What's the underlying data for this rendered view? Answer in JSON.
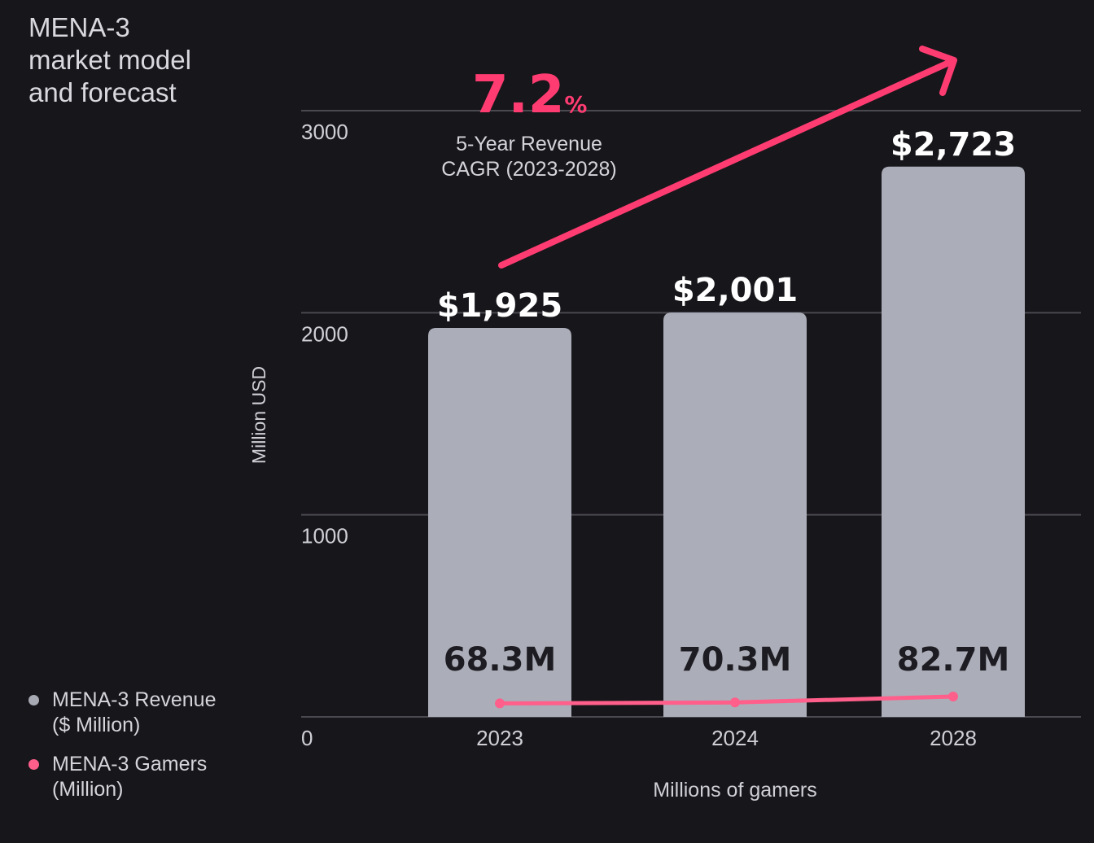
{
  "title_lines": [
    "MENA-3",
    "market model",
    "and forecast"
  ],
  "cagr": {
    "value": "7.2",
    "unit": "%",
    "caption_lines": [
      "5-Year Revenue",
      "CAGR (2023-2028)"
    ]
  },
  "legend": [
    {
      "lines": [
        "MENA-3 Revenue",
        "($ Million)"
      ],
      "color": "#a7a9b3"
    },
    {
      "lines": [
        "MENA-3 Gamers",
        "(Million)"
      ],
      "color": "#ff5f8a"
    }
  ],
  "colors": {
    "bar": "#abadb8",
    "gridline": "#4a4950",
    "accent": "#ff3c71",
    "gamers_line": "#ff5f8a",
    "background": "#17161b"
  },
  "chart_data": {
    "type": "bar",
    "categories": [
      "2023",
      "2024",
      "2028"
    ],
    "ylabel": "Million USD",
    "xlabel": "Millions of gamers",
    "ylim": [
      0,
      3000
    ],
    "yticks": [
      0,
      1000,
      2000,
      3000
    ],
    "grid": true,
    "legend_position": "bottom-left",
    "series": [
      {
        "name": "MENA-3 Revenue ($ Million)",
        "type": "bar",
        "values": [
          1925,
          2001,
          2723
        ],
        "labels": [
          "$1,925",
          "$2,001",
          "$2,723"
        ]
      },
      {
        "name": "MENA-3 Gamers (Million)",
        "type": "line",
        "values": [
          68.3,
          70.3,
          82.7
        ],
        "labels": [
          "68.3M",
          "70.3M",
          "82.7M"
        ]
      }
    ],
    "annotations": [
      {
        "type": "trend-arrow",
        "text": "7.2% 5-Year Revenue CAGR (2023-2028)"
      }
    ]
  }
}
